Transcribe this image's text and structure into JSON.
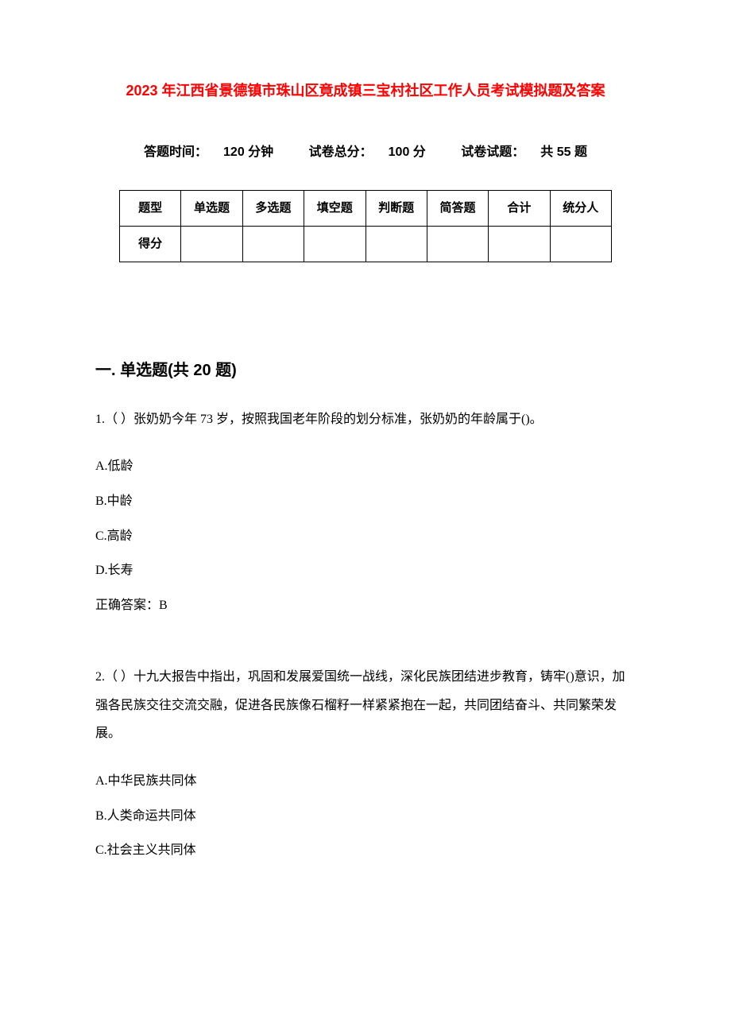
{
  "title": "2023 年江西省景德镇市珠山区竟成镇三宝村社区工作人员考试模拟题及答案",
  "meta": {
    "time_label": "答题时间：",
    "time_value": "120 分钟",
    "total_label": "试卷总分：",
    "total_value": "100 分",
    "count_label": "试卷试题：",
    "count_value": "共 55 题"
  },
  "score_table": {
    "headers": [
      "题型",
      "单选题",
      "多选题",
      "填空题",
      "判断题",
      "简答题",
      "合计",
      "统分人"
    ],
    "row_label": "得分"
  },
  "section1": {
    "title": "一. 单选题(共 20 题)",
    "q1": {
      "stem": "1.（ ）张奶奶今年 73 岁，按照我国老年阶段的划分标准，张奶奶的年龄属于()。",
      "optA": "A.低龄",
      "optB": "B.中龄",
      "optC": "C.高龄",
      "optD": "D.长寿",
      "answer": "正确答案：B"
    },
    "q2": {
      "stem": "2.（ ）十九大报告中指出，巩固和发展爱国统一战线，深化民族团结进步教育，铸牢()意识，加强各民族交往交流交融，促进各民族像石榴籽一样紧紧抱在一起，共同团结奋斗、共同繁荣发展。",
      "optA": "A.中华民族共同体",
      "optB": "B.人类命运共同体",
      "optC": "C.社会主义共同体"
    }
  },
  "colors": {
    "title_color": "#ff0000",
    "text_color": "#000000",
    "border_color": "#000000",
    "background": "#ffffff"
  }
}
